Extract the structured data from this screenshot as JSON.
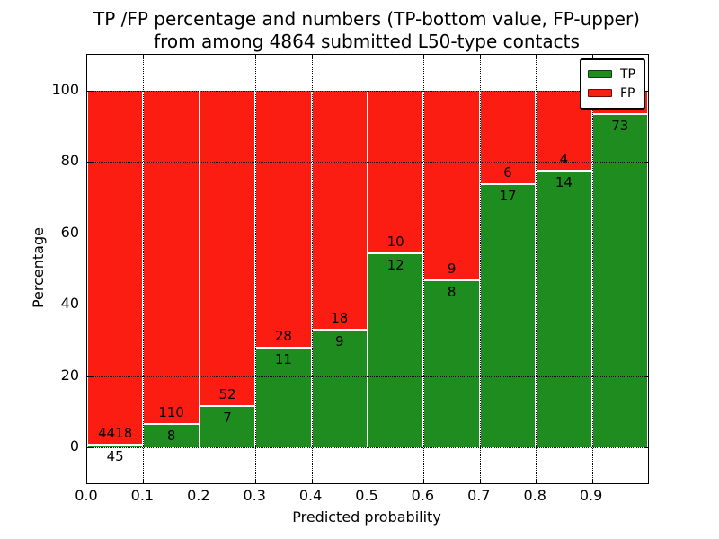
{
  "title": {
    "line1": "TP /FP percentage and numbers (TP-bottom value, FP-upper)",
    "line2": "from among 4864 submitted L50-type contacts"
  },
  "axes": {
    "xlabel": "Predicted probability",
    "ylabel": "Percentage",
    "x_ticks": [
      "0.0",
      "0.1",
      "0.2",
      "0.3",
      "0.4",
      "0.5",
      "0.6",
      "0.7",
      "0.8",
      "0.9"
    ],
    "y_ticks": [
      "0",
      "20",
      "40",
      "60",
      "80",
      "100"
    ]
  },
  "legend": {
    "items": [
      {
        "label": "TP",
        "color": "#1e8c1e"
      },
      {
        "label": "FP",
        "color": "#fb1c12"
      }
    ]
  },
  "chart_data": {
    "type": "bar",
    "stacked": true,
    "normalized_to_percent": true,
    "title": "TP /FP percentage and numbers (TP-bottom value, FP-upper) from among 4864 submitted L50-type contacts",
    "xlabel": "Predicted probability",
    "ylabel": "Percentage",
    "xlim": [
      0.0,
      1.0
    ],
    "ylim": [
      -10,
      110
    ],
    "grid": "dotted",
    "legend_position": "upper right",
    "bin_edges": [
      0.0,
      0.1,
      0.2,
      0.3,
      0.4,
      0.5,
      0.6,
      0.7,
      0.8,
      0.9,
      1.0
    ],
    "categories": [
      "0.0-0.1",
      "0.1-0.2",
      "0.2-0.3",
      "0.3-0.4",
      "0.4-0.5",
      "0.5-0.6",
      "0.6-0.7",
      "0.7-0.8",
      "0.8-0.9",
      "0.9-1.0"
    ],
    "series": [
      {
        "name": "TP",
        "color": "#1e8c1e",
        "counts": [
          45,
          8,
          7,
          11,
          9,
          12,
          8,
          17,
          14,
          73
        ],
        "percent": [
          1.01,
          6.78,
          11.86,
          28.21,
          33.33,
          54.55,
          47.06,
          73.91,
          77.78,
          93.59
        ]
      },
      {
        "name": "FP",
        "color": "#fb1c12",
        "counts": [
          4418,
          110,
          52,
          28,
          18,
          10,
          9,
          6,
          4,
          5
        ],
        "percent": [
          98.99,
          93.22,
          88.14,
          71.79,
          66.67,
          45.45,
          52.94,
          26.09,
          22.22,
          6.41
        ]
      }
    ],
    "total_contacts": 4864
  }
}
